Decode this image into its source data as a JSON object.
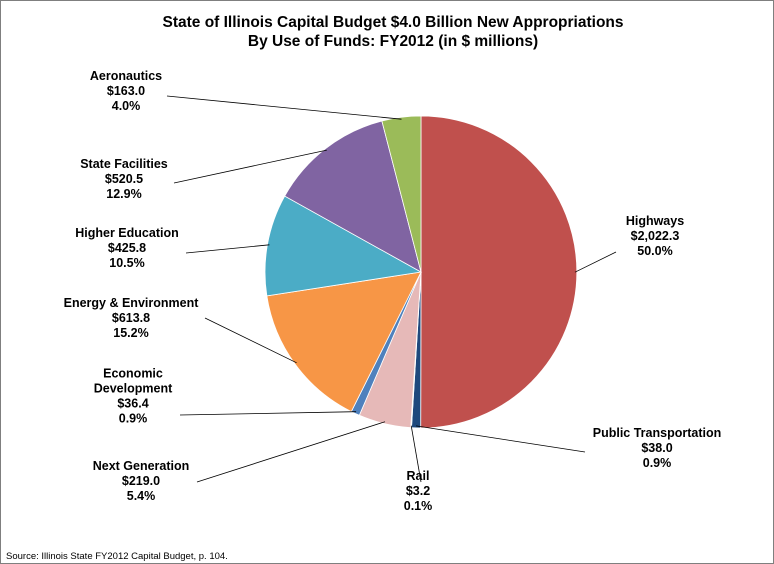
{
  "chart_data": {
    "type": "pie",
    "title": "State of Illinois Capital Budget $4.0 Billion New Appropriations",
    "subtitle": "By Use of Funds: FY2012 (in $ millions)",
    "slices": [
      {
        "name": "Highways",
        "value_label": "$2,022.3",
        "percent_label": "50.0%",
        "value": 2022.3,
        "color": "#c0504d"
      },
      {
        "name": "Public Transportation",
        "value_label": "$38.0",
        "percent_label": "0.9%",
        "value": 38.0,
        "color": "#1f497d"
      },
      {
        "name": "Rail",
        "value_label": "$3.2",
        "percent_label": "0.1%",
        "value": 3.2,
        "color": "#d9d9d9"
      },
      {
        "name": "Next Generation",
        "value_label": "$219.0",
        "percent_label": "5.4%",
        "value": 219.0,
        "color": "#e6b9b8"
      },
      {
        "name": "Economic Development",
        "value_label": "$36.4",
        "percent_label": "0.9%",
        "value": 36.4,
        "color": "#4f81bd"
      },
      {
        "name": "Energy & Environment",
        "value_label": "$613.8",
        "percent_label": "15.2%",
        "value": 613.8,
        "color": "#f79646"
      },
      {
        "name": "Higher Education",
        "value_label": "$425.8",
        "percent_label": "10.5%",
        "value": 425.8,
        "color": "#4bacc6"
      },
      {
        "name": "State Facilities",
        "value_label": "$520.5",
        "percent_label": "12.9%",
        "value": 520.5,
        "color": "#8064a2"
      },
      {
        "name": "Aeronautics",
        "value_label": "$163.0",
        "percent_label": "4.0%",
        "value": 163.0,
        "color": "#9bbb59"
      }
    ],
    "source": "Source: Illinois State FY2012 Capital Budget, p. 104."
  }
}
